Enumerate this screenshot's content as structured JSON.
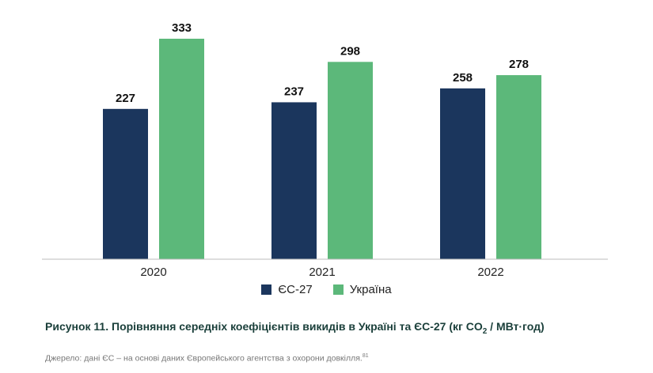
{
  "chart_data": {
    "type": "bar",
    "categories": [
      "2020",
      "2021",
      "2022"
    ],
    "series": [
      {
        "name": "ЄС-27",
        "color": "#1b365d",
        "values": [
          227,
          237,
          258
        ]
      },
      {
        "name": "Україна",
        "color": "#5cb87a",
        "values": [
          333,
          298,
          278
        ]
      }
    ],
    "ylim": [
      0,
      333
    ],
    "grid": false,
    "legend_position": "bottom-center"
  },
  "caption": {
    "prefix": "Рисунок 11. Порівняння середніх коефіцієнтів викидів в Україні та ЄС-27 (кг CO",
    "sub": "2",
    "suffix": " / МВт·год)"
  },
  "source": {
    "text": "Джерело: дані ЄС – на основі даних Європейського агентства з охорони довкілля.",
    "footnote": "81"
  }
}
